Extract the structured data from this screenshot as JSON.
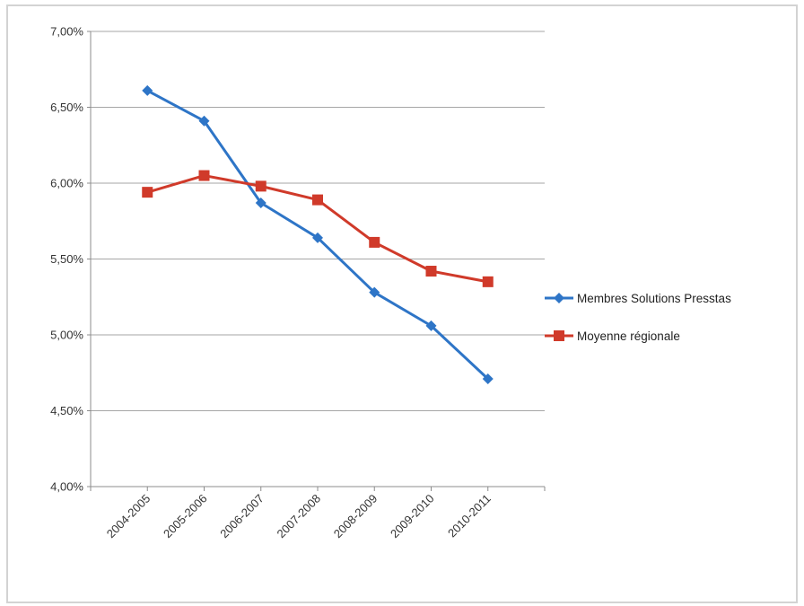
{
  "chart_data": {
    "type": "line",
    "categories": [
      "2004-2005",
      "2005-2006",
      "2006-2007",
      "2007-2008",
      "2008-2009",
      "2009-2010",
      "2010-2011"
    ],
    "series": [
      {
        "name": "Membres Solutions Presstas",
        "values": [
          6.61,
          6.41,
          5.87,
          5.64,
          5.28,
          5.06,
          4.71
        ],
        "color": "#2e75c7",
        "marker": "diamond"
      },
      {
        "name": "Moyenne  régionale",
        "values": [
          5.94,
          6.05,
          5.98,
          5.89,
          5.61,
          5.42,
          5.35
        ],
        "color": "#d03a2a",
        "marker": "square"
      }
    ],
    "yticks": [
      "4,00%",
      "4,50%",
      "5,00%",
      "5,50%",
      "6,00%",
      "6,50%",
      "7,00%"
    ],
    "ytick_values": [
      4.0,
      4.5,
      5.0,
      5.5,
      6.0,
      6.5,
      7.0
    ],
    "ylim": [
      4.0,
      7.0
    ],
    "grid": true,
    "legend_position": "right"
  }
}
